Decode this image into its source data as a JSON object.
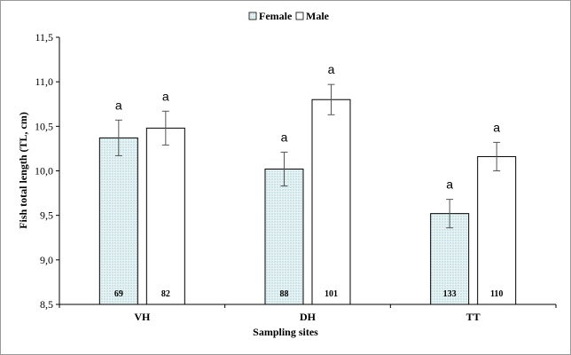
{
  "chart_data": {
    "type": "bar",
    "categories": [
      "VH",
      "DH",
      "TT"
    ],
    "series": [
      {
        "name": "Female",
        "values": [
          10.37,
          10.02,
          9.52
        ],
        "error": [
          0.2,
          0.19,
          0.16
        ],
        "significance": [
          "a",
          "a",
          "a"
        ],
        "counts": [
          "69",
          "88",
          "133"
        ],
        "color": "#d7eef0"
      },
      {
        "name": "Male",
        "values": [
          10.48,
          10.8,
          10.16
        ],
        "error": [
          0.19,
          0.17,
          0.16
        ],
        "significance": [
          "a",
          "a",
          "a"
        ],
        "counts": [
          "82",
          "101",
          "110"
        ],
        "color": "#ffffff"
      }
    ],
    "xlabel": "Sampling sites",
    "ylabel": "Fish total length (TL, cm)",
    "ylim": [
      8.5,
      11.5
    ],
    "yticks": [
      "8,5",
      "9,0",
      "9,5",
      "10,0",
      "10,5",
      "11,0",
      "11,5"
    ],
    "grid": false,
    "legend_position": "top-center"
  }
}
